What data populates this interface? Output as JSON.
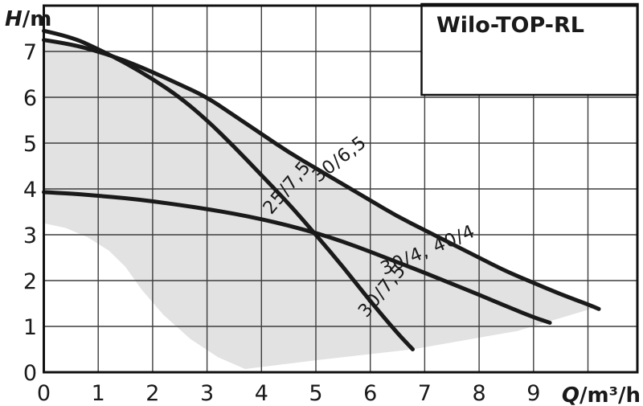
{
  "title": "Wilo-TOP-RL",
  "axes": {
    "y_label_main": "H",
    "y_label_unit": "/m",
    "x_label_main": "Q",
    "x_label_unit": "/m³/h"
  },
  "colors": {
    "curve": "#1a1a1a",
    "grid": "#3d3d3d",
    "frame": "#111111",
    "region_fill": "#e2e2e2",
    "text": "#1a1a1a",
    "background": "#ffffff"
  },
  "chart_data": {
    "type": "line",
    "title": "Wilo-TOP-RL",
    "xlabel": "Q/m³/h",
    "ylabel": "H/m",
    "xlim": [
      0,
      10.9
    ],
    "ylim": [
      0,
      8
    ],
    "x_tick_values": [
      0,
      1,
      2,
      3,
      4,
      5,
      6,
      7,
      8,
      9
    ],
    "y_tick_values": [
      0,
      1,
      2,
      3,
      4,
      5,
      6,
      7
    ],
    "x_grid_step": 1,
    "y_grid_step": 1,
    "grid": true,
    "legend_position": "none",
    "series": [
      {
        "name": "25/7,5 / 30/7,5",
        "labels": [
          "25/7,5",
          "30/7,5"
        ],
        "points": [
          [
            0,
            7.45
          ],
          [
            0.5,
            7.32
          ],
          [
            1,
            7.05
          ],
          [
            1.5,
            6.75
          ],
          [
            2,
            6.4
          ],
          [
            2.5,
            6.0
          ],
          [
            3,
            5.5
          ],
          [
            3.5,
            4.92
          ],
          [
            4,
            4.3
          ],
          [
            4.5,
            3.68
          ],
          [
            5,
            3.0
          ],
          [
            5.5,
            2.3
          ],
          [
            6,
            1.55
          ],
          [
            6.5,
            0.85
          ],
          [
            6.78,
            0.5
          ]
        ]
      },
      {
        "name": "30/6,5",
        "labels": [
          "30/6,5"
        ],
        "points": [
          [
            0,
            7.25
          ],
          [
            0.5,
            7.16
          ],
          [
            1,
            7.0
          ],
          [
            1.5,
            6.8
          ],
          [
            2,
            6.55
          ],
          [
            2.5,
            6.28
          ],
          [
            3,
            6.0
          ],
          [
            3.5,
            5.6
          ],
          [
            4,
            5.2
          ],
          [
            4.5,
            4.8
          ],
          [
            5,
            4.45
          ],
          [
            5.5,
            4.1
          ],
          [
            6,
            3.75
          ],
          [
            6.5,
            3.4
          ],
          [
            7,
            3.1
          ],
          [
            7.5,
            2.8
          ],
          [
            8,
            2.5
          ],
          [
            8.5,
            2.2
          ],
          [
            9,
            1.95
          ],
          [
            9.5,
            1.7
          ],
          [
            10,
            1.48
          ],
          [
            10.2,
            1.38
          ]
        ]
      },
      {
        "name": "30/4, 40/4",
        "labels": [
          "30/4, 40/4"
        ],
        "points": [
          [
            0,
            3.93
          ],
          [
            0.5,
            3.9
          ],
          [
            1,
            3.85
          ],
          [
            1.5,
            3.8
          ],
          [
            2,
            3.73
          ],
          [
            2.5,
            3.65
          ],
          [
            3,
            3.56
          ],
          [
            3.5,
            3.46
          ],
          [
            4,
            3.34
          ],
          [
            4.5,
            3.2
          ],
          [
            5,
            3.04
          ],
          [
            5.5,
            2.85
          ],
          [
            6,
            2.63
          ],
          [
            6.5,
            2.4
          ],
          [
            7,
            2.17
          ],
          [
            7.5,
            1.93
          ],
          [
            8,
            1.69
          ],
          [
            8.5,
            1.44
          ],
          [
            9,
            1.2
          ],
          [
            9.3,
            1.08
          ]
        ]
      }
    ],
    "curve_labels": [
      {
        "text": "30/6,5",
        "x": 5.5,
        "y": 4.55,
        "angle": -38
      },
      {
        "text": "25/7,5",
        "x": 4.55,
        "y": 3.95,
        "angle": -50
      },
      {
        "text": "30/4, 40/4",
        "x": 7.1,
        "y": 2.55,
        "angle": -23
      },
      {
        "text": "30/7,5",
        "x": 6.3,
        "y": 1.7,
        "angle": -50
      }
    ],
    "operating_region": [
      [
        0,
        7.2
      ],
      [
        1,
        7.0
      ],
      [
        1.5,
        6.8
      ],
      [
        2,
        6.55
      ],
      [
        2.5,
        6.28
      ],
      [
        3,
        6.0
      ],
      [
        3.5,
        5.6
      ],
      [
        4,
        5.2
      ],
      [
        4.5,
        4.8
      ],
      [
        5,
        4.45
      ],
      [
        5.5,
        4.1
      ],
      [
        6,
        3.75
      ],
      [
        6.5,
        3.4
      ],
      [
        7,
        3.1
      ],
      [
        7.5,
        2.8
      ],
      [
        8,
        2.5
      ],
      [
        8.5,
        2.2
      ],
      [
        9,
        1.95
      ],
      [
        9.5,
        1.7
      ],
      [
        10.1,
        1.4
      ],
      [
        8.7,
        0.9
      ],
      [
        6.78,
        0.5
      ],
      [
        5,
        0.26
      ],
      [
        3.7,
        0.07
      ],
      [
        3.2,
        0.33
      ],
      [
        2.7,
        0.72
      ],
      [
        2.2,
        1.25
      ],
      [
        1.8,
        1.8
      ],
      [
        1.5,
        2.3
      ],
      [
        1.2,
        2.65
      ],
      [
        0.8,
        2.95
      ],
      [
        0.4,
        3.15
      ],
      [
        0,
        3.25
      ]
    ]
  }
}
